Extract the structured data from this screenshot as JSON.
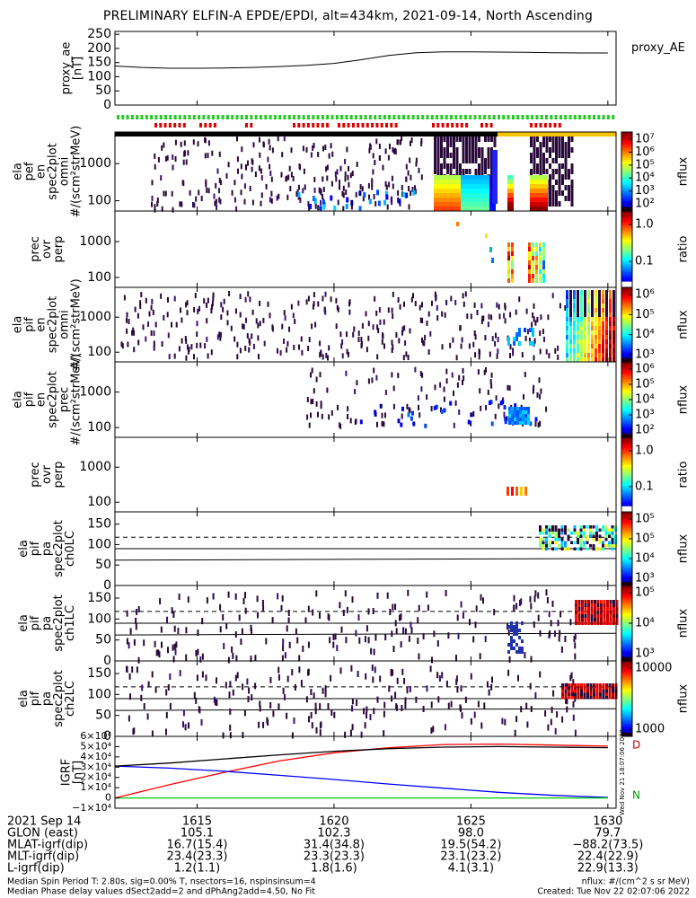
{
  "title": "PRELIMINARY ELFIN-A EPDE/EPDI, alt=434km, 2021-09-14, North Ascending",
  "panels": [
    {
      "id": "proxy_ae",
      "ylabel": [
        "proxy_ae",
        "[nT]"
      ],
      "yticks": [
        "250",
        "200",
        "150",
        "100",
        "50",
        "0"
      ],
      "right_label": "proxy_AE"
    },
    {
      "id": "elx_pef_en",
      "ylabel": [
        "ela",
        "pef",
        "en",
        "spec2plot",
        "omni",
        "#/(scm²strMeV)"
      ],
      "yticks": [
        "1000",
        "100"
      ],
      "cbar_ticks": [
        "10⁷",
        "10⁶",
        "10⁵",
        "10⁴",
        "10³",
        "10²"
      ],
      "cbar_label": "nflux"
    },
    {
      "id": "prec_ovr_perp_e",
      "ylabel": [
        "prec",
        "ovr",
        "perp"
      ],
      "yticks": [
        "1000",
        "100"
      ],
      "cbar_ticks": [
        "1.0",
        "0.1"
      ],
      "cbar_label": "ratio"
    },
    {
      "id": "elx_pif_en",
      "ylabel": [
        "ela",
        "pif",
        "en",
        "spec2plot",
        "omni",
        "#/(scm²strMeV)"
      ],
      "yticks": [
        "1000",
        "100"
      ],
      "cbar_ticks": [
        "10⁶",
        "10⁵",
        "10⁴",
        "10³"
      ],
      "cbar_label": "nflux"
    },
    {
      "id": "elx_pif_prec",
      "ylabel": [
        "ela",
        "pif",
        "en",
        "spec2plot",
        "prec",
        "#/(scm²strMeV)"
      ],
      "yticks": [
        "1000",
        "100"
      ],
      "cbar_ticks": [
        "10⁶",
        "10⁵",
        "10⁴",
        "10³",
        "10²"
      ],
      "cbar_label": "nflux"
    },
    {
      "id": "prec_ovr_perp_i",
      "ylabel": [
        "prec",
        "ovr",
        "perp"
      ],
      "yticks": [
        "1000",
        "100"
      ],
      "cbar_ticks": [
        "1.0",
        "0.1"
      ],
      "cbar_label": "ratio"
    },
    {
      "id": "pa_ch0",
      "ylabel": [
        "ela",
        "pif",
        "pa",
        "spec2plot",
        "ch0LC"
      ],
      "yticks": [
        "150",
        "100",
        "50",
        "0"
      ],
      "cbar_ticks": [
        "10⁵",
        "10⁵",
        "10⁴",
        "10³"
      ],
      "cbar_label": "nflux"
    },
    {
      "id": "pa_ch1",
      "ylabel": [
        "ela",
        "pif",
        "pa",
        "spec2plot",
        "ch1LC"
      ],
      "yticks": [
        "150",
        "100",
        "50",
        "0"
      ],
      "cbar_ticks": [
        "10⁵",
        "10⁴",
        "10³"
      ],
      "cbar_label": "nflux"
    },
    {
      "id": "pa_ch2",
      "ylabel": [
        "ela",
        "pif",
        "pa",
        "spec2plot",
        "ch2LC"
      ],
      "yticks": [
        "150",
        "100",
        "50",
        "0"
      ],
      "cbar_ticks": [
        "10000",
        "1000"
      ],
      "cbar_label": "nflux"
    },
    {
      "id": "igrf",
      "ylabel": [
        "IGRF",
        "[nT]"
      ],
      "yticks": [
        "6×10⁴",
        "5×10⁴",
        "4×10⁴",
        "3×10⁴",
        "2×10⁴",
        "1×10⁴",
        "0",
        "−1×10⁴"
      ],
      "right_labels": [
        "D",
        "N"
      ],
      "stamp": "Wed Nov 21 18:07:06 2022"
    }
  ],
  "xticks": [
    "1615",
    "1620",
    "1625",
    "1630"
  ],
  "footer": {
    "rows": [
      {
        "label": "2021 Sep 14",
        "values": [
          "",
          "",
          "",
          ""
        ]
      },
      {
        "label": "GLON (east)",
        "values": [
          "105.1",
          "102.3",
          "98.0",
          "79.7"
        ]
      },
      {
        "label": "MLAT-igrf(dip)",
        "values": [
          "16.7(15.4)",
          "31.4(34.8)",
          "19.5(54.2)",
          "−88.2(73.5)"
        ]
      },
      {
        "label": "MLT-igrf(dip)",
        "values": [
          "23.4(23.3)",
          "23.3(23.3)",
          "23.1(23.2)",
          "22.4(22.9)"
        ]
      },
      {
        "label": "L-igrf(dip)",
        "values": [
          "1.2(1.1)",
          "1.8(1.6)",
          "4.1(3.1)",
          "22.9(13.3)"
        ]
      }
    ],
    "note1": "Median Spin Period T: 2.80s, sig=0.00% T, nsectors=16, nspinsinsum=4",
    "note2": "Median Phase delay values dSect2add=2 and dPhAng2add=4.50, No Fit",
    "units": "nflux: #/(cm^2 s sr MeV)",
    "created": "Created: Tue Nov 22 02:07:06 2022"
  },
  "chart_data": {
    "type": "heatmap",
    "x_axis": {
      "unit": "UT (HHMM)",
      "ticks": [
        1615,
        1620,
        1625,
        1630
      ],
      "range": [
        1612,
        1630.3
      ]
    },
    "proxy_ae": {
      "x": [
        1612,
        1613,
        1614,
        1615,
        1616,
        1617,
        1618,
        1619,
        1620,
        1621,
        1622,
        1623,
        1624,
        1625,
        1626,
        1627,
        1628,
        1629,
        1630
      ],
      "y": [
        138,
        133,
        130,
        130,
        131,
        133,
        136,
        140,
        147,
        160,
        175,
        185,
        188,
        188,
        187,
        186,
        185,
        184,
        184
      ],
      "ylim": [
        0,
        260
      ]
    },
    "igrf": {
      "ylim": [
        -10000,
        60000
      ],
      "series": [
        {
          "color": "#ff0000",
          "x": [
            1612,
            1614,
            1616,
            1618,
            1620,
            1622,
            1624,
            1626,
            1628,
            1630
          ],
          "y": [
            0,
            13000,
            25000,
            36000,
            44000,
            49000,
            52000,
            52500,
            51500,
            50500
          ]
        },
        {
          "color": "#0000ff",
          "x": [
            1612,
            1614,
            1616,
            1618,
            1620,
            1622,
            1624,
            1626,
            1628,
            1630
          ],
          "y": [
            31000,
            29000,
            26000,
            22000,
            18000,
            13500,
            9500,
            5500,
            2500,
            500
          ]
        },
        {
          "color": "#000000",
          "x": [
            1612,
            1614,
            1616,
            1618,
            1620,
            1622,
            1624,
            1626,
            1628,
            1630
          ],
          "y": [
            31000,
            34000,
            38000,
            42000,
            45500,
            48000,
            49500,
            50000,
            49500,
            49000
          ]
        },
        {
          "color": "#00cc00",
          "x": [
            1612,
            1630
          ],
          "y": [
            0,
            0
          ]
        }
      ]
    }
  }
}
